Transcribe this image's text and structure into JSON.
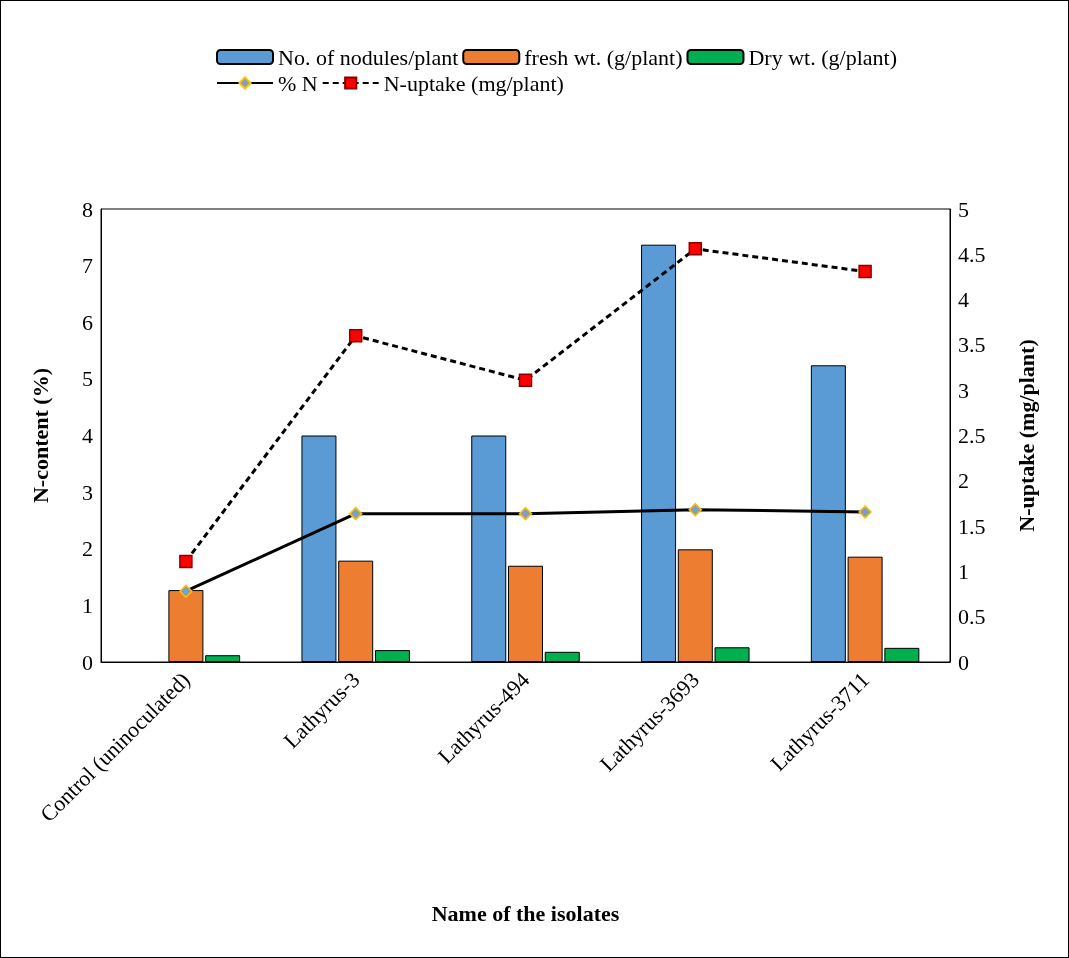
{
  "chart_data": {
    "type": "bar",
    "categories": [
      "Control (uninoculated)",
      "Lathyrus-3",
      "Lathyrus-494",
      "Lathyrus-3693",
      "Lathyrus-3711"
    ],
    "xlabel": "Name of the isolates",
    "ylabel": "N-content (%)",
    "y2label": "N-uptake (mg/plant)",
    "series": [
      {
        "name": "No. of nodules/plant",
        "color": "#5b9bd5",
        "values": [
          0,
          4,
          4,
          7.37,
          5.24
        ]
      },
      {
        "name": "fresh wt. (g/plant)",
        "color": "#ed7d31",
        "values": [
          1.27,
          1.79,
          1.7,
          1.99,
          1.86
        ]
      },
      {
        "name": "Dry wt. (g/plant)",
        "color": "#00b050",
        "values": [
          0.12,
          0.21,
          0.18,
          0.26,
          0.25
        ]
      },
      {
        "name": "% N",
        "type": "line",
        "color": "#000000",
        "marker": "diamond",
        "line_style": "solid",
        "values": [
          1.25,
          2.62,
          2.62,
          2.69,
          2.65
        ]
      },
      {
        "name": "N-uptake (mg/plant)",
        "type": "line",
        "axis": "y2",
        "color": "#000000",
        "marker": "square",
        "line_style": "dashed",
        "values": [
          1.11,
          3.6,
          3.11,
          4.56,
          4.31
        ]
      }
    ],
    "ylim": [
      0,
      8
    ],
    "yticks": [
      0,
      1,
      2,
      3,
      4,
      5,
      6,
      7,
      8
    ],
    "y2lim": [
      0,
      5
    ],
    "y2ticks": [
      0,
      0.5,
      1,
      1.5,
      2,
      2.5,
      3,
      3.5,
      4,
      4.5,
      5
    ],
    "grid": false,
    "legend": "top"
  }
}
